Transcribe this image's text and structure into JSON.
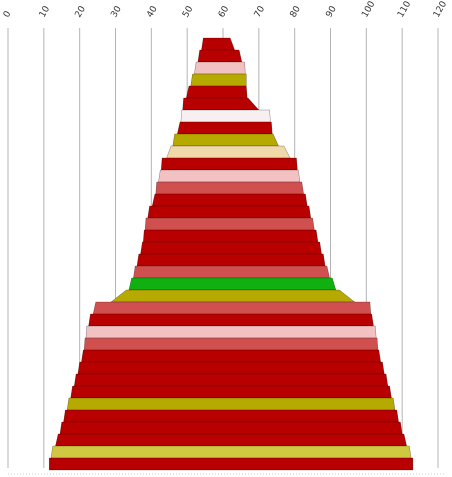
{
  "chart_data": {
    "type": "bar",
    "orientation": "horizontal-centered",
    "title": "",
    "xlabel": "",
    "ylabel": "",
    "xlim": [
      0,
      120
    ],
    "x_ticks": [
      "0",
      "10",
      "20",
      "30",
      "40",
      "50",
      "60",
      "70",
      "80",
      "90",
      "100",
      "110",
      "120"
    ],
    "grid": true,
    "legend": "none",
    "center": 59,
    "bars": [
      {
        "left": 54.5,
        "right": 62.0,
        "color": "#b80000"
      },
      {
        "left": 53.5,
        "right": 64.5,
        "color": "#b80000"
      },
      {
        "left": 52.5,
        "right": 66.0,
        "color": "#f2c2c2"
      },
      {
        "left": 51.5,
        "right": 66.5,
        "color": "#b6aa00"
      },
      {
        "left": 50.5,
        "right": 66.5,
        "color": "#b80000"
      },
      {
        "left": 49.0,
        "right": 67.0,
        "color": "#b80000"
      },
      {
        "left": 48.5,
        "right": 73.0,
        "color": "#f8f0f0"
      },
      {
        "left": 48.0,
        "right": 73.5,
        "color": "#b80000"
      },
      {
        "left": 46.5,
        "right": 74.0,
        "color": "#b6aa00"
      },
      {
        "left": 45.5,
        "right": 77.0,
        "color": "#f0d8a8"
      },
      {
        "left": 43.0,
        "right": 80.5,
        "color": "#b80000"
      },
      {
        "left": 42.5,
        "right": 81.0,
        "color": "#f2c2c2"
      },
      {
        "left": 41.5,
        "right": 82.0,
        "color": "#d05050"
      },
      {
        "left": 41.0,
        "right": 83.0,
        "color": "#b80000"
      },
      {
        "left": 39.5,
        "right": 84.0,
        "color": "#b80000"
      },
      {
        "left": 38.5,
        "right": 85.0,
        "color": "#d05050"
      },
      {
        "left": 38.0,
        "right": 86.0,
        "color": "#b80000"
      },
      {
        "left": 37.5,
        "right": 87.0,
        "color": "#b80000"
      },
      {
        "left": 36.5,
        "right": 88.0,
        "color": "#b80000"
      },
      {
        "left": 35.5,
        "right": 89.0,
        "color": "#d05050"
      },
      {
        "left": 34.5,
        "right": 90.5,
        "color": "#10b010"
      },
      {
        "left": 33.0,
        "right": 92.5,
        "color": "#b6aa00"
      },
      {
        "left": 24.5,
        "right": 101.0,
        "color": "#d05050"
      },
      {
        "left": 23.0,
        "right": 101.5,
        "color": "#b80000"
      },
      {
        "left": 22.0,
        "right": 102.5,
        "color": "#f2c2c2"
      },
      {
        "left": 21.5,
        "right": 103.0,
        "color": "#d05050"
      },
      {
        "left": 21.0,
        "right": 103.5,
        "color": "#b80000"
      },
      {
        "left": 20.0,
        "right": 104.5,
        "color": "#b80000"
      },
      {
        "left": 19.0,
        "right": 105.5,
        "color": "#b80000"
      },
      {
        "left": 18.0,
        "right": 106.5,
        "color": "#b80000"
      },
      {
        "left": 17.0,
        "right": 107.5,
        "color": "#b6aa00"
      },
      {
        "left": 16.0,
        "right": 108.5,
        "color": "#b80000"
      },
      {
        "left": 15.0,
        "right": 109.5,
        "color": "#b80000"
      },
      {
        "left": 14.0,
        "right": 110.5,
        "color": "#b80000"
      },
      {
        "left": 12.5,
        "right": 112.0,
        "color": "#d0c840"
      },
      {
        "left": 11.5,
        "right": 113.0,
        "color": "#b80000"
      }
    ]
  }
}
